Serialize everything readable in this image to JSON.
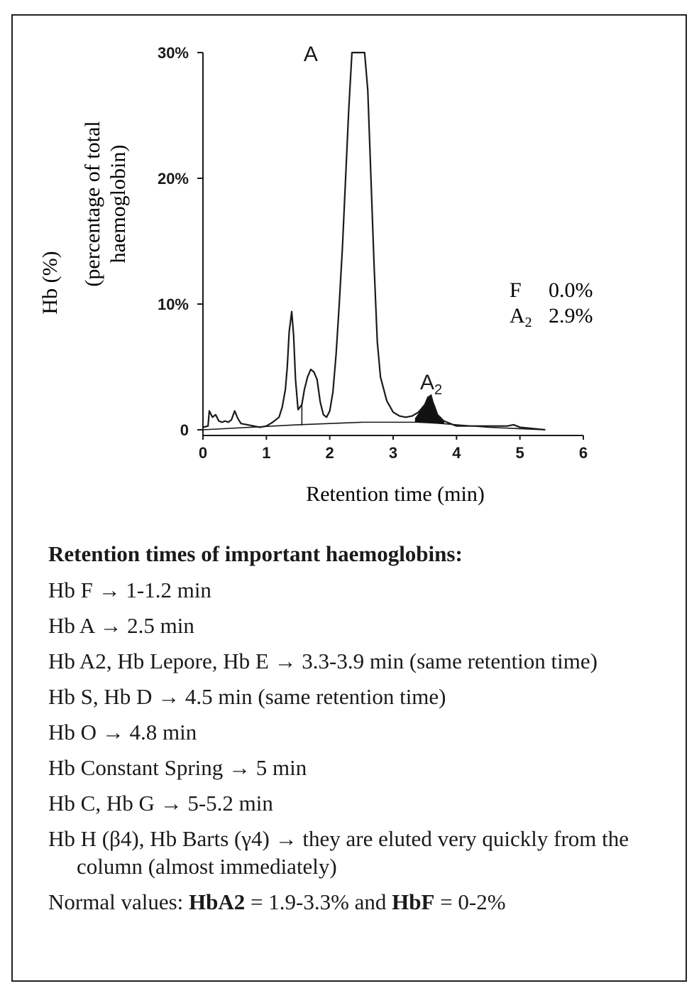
{
  "chart_data": {
    "type": "line",
    "title": "",
    "xlabel": "Retention time (min)",
    "ylabel": "Hb (%)",
    "ylabel_sub": [
      "(percentage of total",
      "haemoglobin)"
    ],
    "xlim": [
      0,
      6
    ],
    "ylim": [
      0,
      30
    ],
    "xticks": [
      "0",
      "1",
      "2",
      "3",
      "4",
      "5",
      "6"
    ],
    "yticks": [
      "0",
      "10%",
      "20%",
      "30%"
    ],
    "series": [
      {
        "x": [
          0.0,
          0.08,
          0.1,
          0.15,
          0.2,
          0.25,
          0.3,
          0.35,
          0.4,
          0.45,
          0.5,
          0.55,
          0.6,
          0.7,
          0.8,
          0.9,
          1.0,
          1.1,
          1.2,
          1.25,
          1.3,
          1.33,
          1.36,
          1.4,
          1.43,
          1.46,
          1.5,
          1.56,
          1.6,
          1.65,
          1.7,
          1.75,
          1.8,
          1.85,
          1.9,
          1.95,
          2.0,
          2.05,
          2.1,
          2.15,
          2.2,
          2.25,
          2.3,
          2.35,
          2.4,
          2.45,
          2.5,
          2.55,
          2.6,
          2.65,
          2.7,
          2.75,
          2.8,
          2.9,
          3.0,
          3.1,
          3.2,
          3.3,
          3.4,
          3.5,
          3.55,
          3.6,
          3.65,
          3.7,
          3.8,
          4.0,
          4.5,
          4.8,
          4.9,
          5.0,
          5.2,
          5.4
        ],
        "y": [
          0.2,
          0.3,
          1.5,
          1.0,
          1.2,
          0.7,
          0.6,
          0.7,
          0.6,
          0.8,
          1.5,
          0.9,
          0.5,
          0.4,
          0.3,
          0.2,
          0.3,
          0.6,
          1.0,
          1.8,
          3.2,
          5.0,
          7.8,
          9.4,
          7.5,
          4.0,
          1.6,
          2.0,
          3.2,
          4.2,
          4.8,
          4.6,
          4.0,
          2.2,
          1.2,
          1.0,
          1.5,
          3.0,
          6.0,
          10.0,
          14.5,
          20.0,
          25.5,
          30.0,
          30.0,
          30.0,
          30.0,
          30.0,
          27.0,
          20.0,
          13.0,
          7.0,
          4.2,
          2.3,
          1.4,
          1.1,
          1.0,
          1.1,
          1.4,
          2.0,
          2.6,
          2.5,
          1.9,
          1.2,
          0.7,
          0.3,
          0.3,
          0.3,
          0.4,
          0.2,
          0.1,
          0.0
        ],
        "name": ""
      }
    ],
    "baseline": {
      "x": [
        0.0,
        1.5,
        2.5,
        3.5,
        4.5,
        5.4
      ],
      "y": [
        0.0,
        0.4,
        0.6,
        0.6,
        0.2,
        0.0
      ]
    },
    "filled_peak": {
      "label": "A2",
      "x": [
        3.35,
        3.5,
        3.55,
        3.6,
        3.65,
        3.7,
        3.8
      ],
      "y": [
        0.9,
        2.0,
        2.6,
        2.8,
        1.9,
        1.2,
        0.7
      ]
    },
    "peak_labels": [
      {
        "text": "A",
        "x": 1.7,
        "y": 30
      },
      {
        "text": "A",
        "sub": "2",
        "x": 3.6,
        "y": 3.9
      }
    ],
    "results": [
      {
        "name": "F",
        "name_sub": "",
        "value": "0.0%"
      },
      {
        "name": "A",
        "name_sub": "2",
        "value": "2.9%"
      }
    ],
    "grid": false,
    "colors": {
      "line": "#1a1a1a",
      "fill": "#111111"
    }
  },
  "notes": {
    "heading": "Retention times of important haemoglobins:",
    "items": [
      "Hb F → 1-1.2 min",
      "Hb A → 2.5 min",
      "Hb A2, Hb Lepore, Hb E → 3.3-3.9 min (same retention time)",
      "Hb S, Hb D → 4.5 min (same retention time)",
      "Hb O → 4.8 min",
      "Hb Constant Spring → 5 min",
      "Hb C, Hb G → 5-5.2 min",
      "Hb H (β4), Hb Barts (γ4) → they are eluted very quickly from the column (almost immediately)"
    ],
    "normal_prefix": "Normal values: ",
    "hba2_label": "HbA2",
    "hba2_value": " = 1.9-3.3% and ",
    "hbf_label": "HbF",
    "hbf_value": " = 0-2%"
  }
}
